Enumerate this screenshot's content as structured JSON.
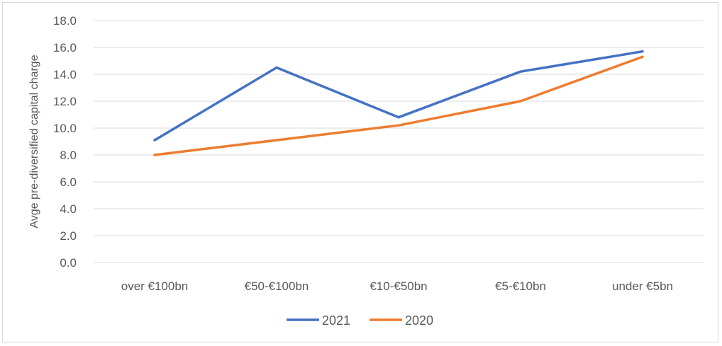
{
  "chart_data": {
    "type": "line",
    "title": "",
    "xlabel": "",
    "ylabel": "Avge pre-diversified capital charge",
    "categories": [
      "over €100bn",
      "€50-€100bn",
      "€10-€50bn",
      "€5-€10bn",
      "under €5bn"
    ],
    "ylim": [
      0,
      18
    ],
    "yticks": [
      "0.0",
      "2.0",
      "4.0",
      "6.0",
      "8.0",
      "10.0",
      "12.0",
      "14.0",
      "16.0",
      "18.0"
    ],
    "grid": true,
    "legend_position": "bottom",
    "series": [
      {
        "name": "2021",
        "color": "#4472C4",
        "values": [
          9.1,
          14.5,
          10.8,
          14.2,
          15.7
        ]
      },
      {
        "name": "2020",
        "color": "#ED7D31",
        "values": [
          8.0,
          9.1,
          10.2,
          12.0,
          15.3
        ]
      }
    ]
  }
}
